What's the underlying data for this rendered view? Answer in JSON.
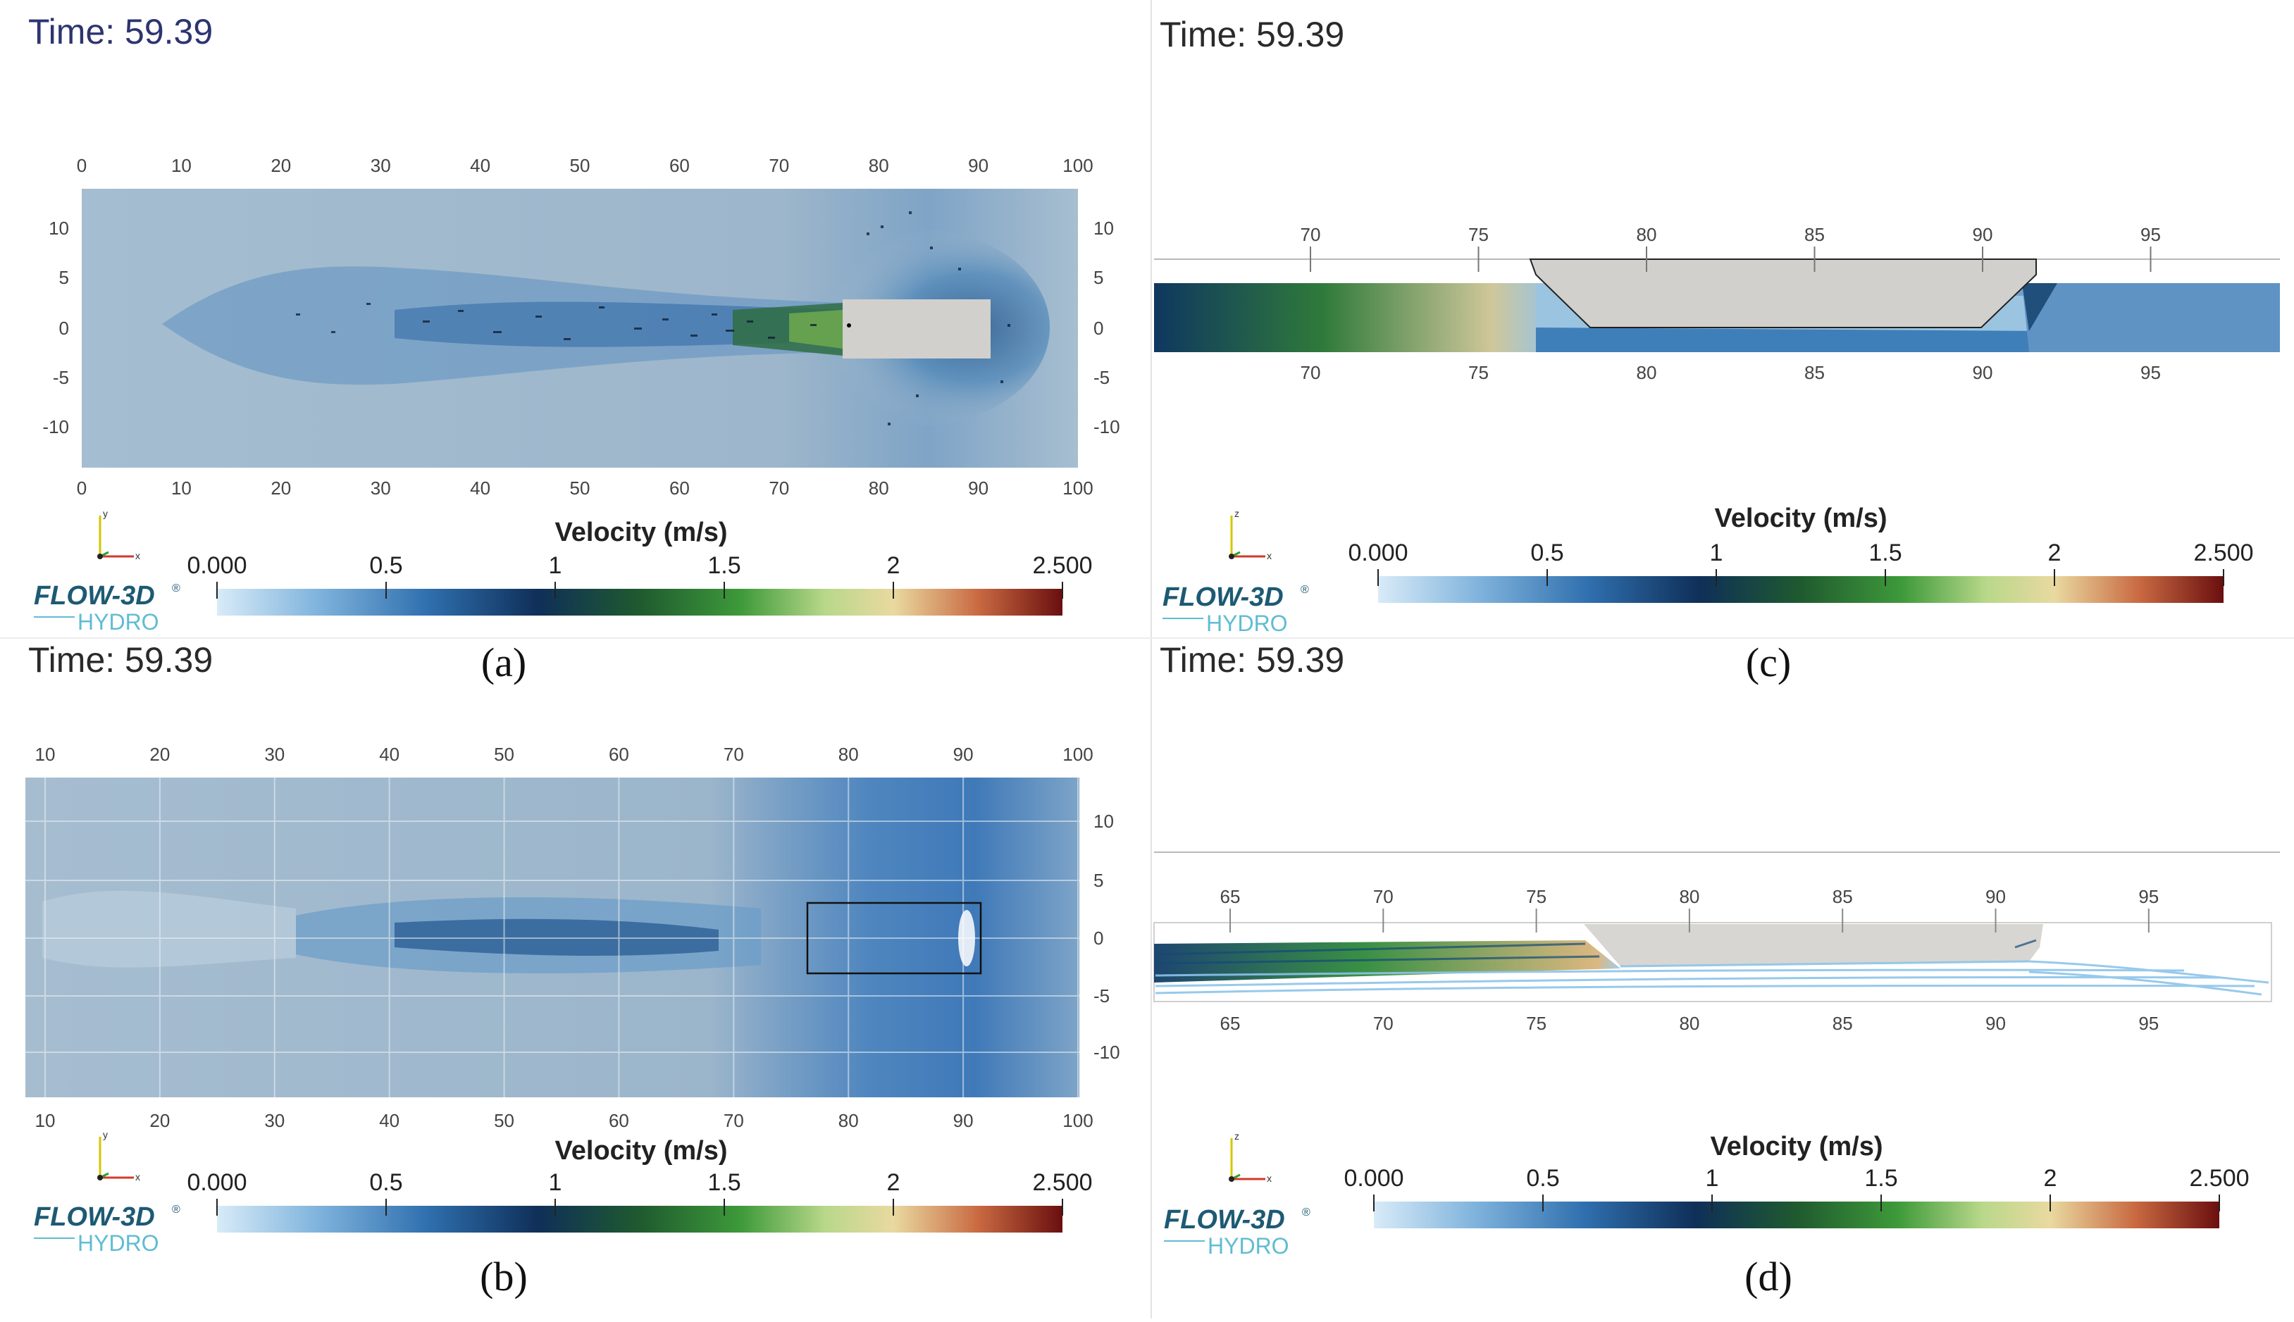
{
  "colors": {
    "page_bg": "#ffffff",
    "flow_bg": "#a9bfd0",
    "structure": "#d2d0cc",
    "time_a": "#2d3470",
    "time_other": "#2a2a2a",
    "logo_dark": "#1d5a73",
    "logo_light": "#5fbcd3"
  },
  "panel_a": {
    "time": "Time: 59.39",
    "caption": "(a)",
    "x_ticks": [
      "0",
      "10",
      "20",
      "30",
      "40",
      "50",
      "60",
      "70",
      "80",
      "90",
      "100"
    ],
    "y_ticks": [
      "10",
      "5",
      "0",
      "-5",
      "-10"
    ]
  },
  "panel_b": {
    "time": "Time: 59.39",
    "caption": "(b)",
    "x_ticks": [
      "10",
      "20",
      "30",
      "40",
      "50",
      "60",
      "70",
      "80",
      "90",
      "100"
    ],
    "y_ticks": [
      "10",
      "5",
      "0",
      "-5",
      "-10"
    ]
  },
  "panel_c": {
    "time": "Time: 59.39",
    "caption": "(c)",
    "x_ticks": [
      "70",
      "75",
      "80",
      "85",
      "90",
      "95"
    ]
  },
  "panel_d": {
    "time": "Time: 59.39",
    "caption": "(d)",
    "x_ticks": [
      "65",
      "70",
      "75",
      "80",
      "85",
      "90",
      "95"
    ]
  },
  "colorbar": {
    "title": "Velocity (m/s)",
    "ticks": [
      "0.000",
      "0.5",
      "1",
      "1.5",
      "2",
      "2.500"
    ],
    "range": [
      0,
      2.5
    ]
  },
  "logo": {
    "main": "FLOW-3D",
    "sup": "®",
    "sub": "HYDRO"
  },
  "axes_icon": {
    "y": "y",
    "x": "x",
    "z": "z"
  }
}
